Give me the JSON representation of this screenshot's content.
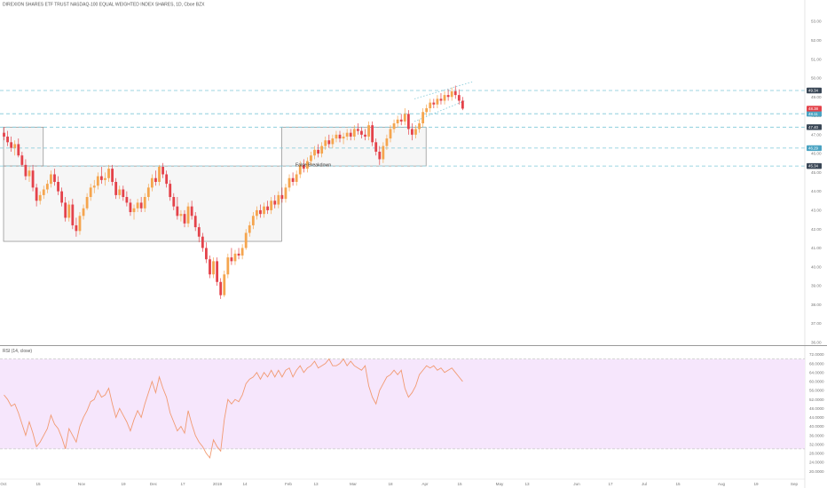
{
  "header": {
    "title": "DIREXION SHARES ETF TRUST NASDAQ-100 EQUAL WEIGHTED INDEX SHARES, 1D, Cboe BZX"
  },
  "rsi_panel": {
    "label": "RSI (14, close)"
  },
  "annotation": {
    "text": "False Breakdown"
  },
  "colors": {
    "up": "#f5a54e",
    "down": "#e4424a",
    "level_line": "#7ec8d8",
    "rsi_line": "#f19a72",
    "rsi_band": "#f6e6fc",
    "box_fill": "#f6f6f6",
    "box_stroke": "#8a8a8a",
    "tag_dark": "#3a4756",
    "tag_light": "#4aa3c2",
    "tag_current": "#e4424a"
  },
  "chart_data": [
    {
      "type": "candlestick",
      "title": "DIREXION SHARES ETF TRUST NASDAQ-100 EQUAL WEIGHTED INDEX SHARES, 1D, Cboe BZX",
      "x_ticks": [
        "Oct",
        "15",
        "Nov",
        "19",
        "Dec",
        "17",
        "2019",
        "14",
        "Feb",
        "13",
        "Mar",
        "18",
        "Apr",
        "15",
        "May",
        "13",
        "Jun",
        "17",
        "Jul",
        "15",
        "Aug",
        "19",
        "Sep"
      ],
      "y_ticks": [
        "53.00",
        "52.00",
        "51.00",
        "50.00",
        "49.00",
        "48.00",
        "47.00",
        "46.00",
        "45.00",
        "44.00",
        "43.00",
        "42.00",
        "41.00",
        "40.00",
        "39.00",
        "38.00",
        "37.00",
        "36.00"
      ],
      "ylim": [
        35.9,
        53.1
      ],
      "levels": [
        {
          "value": "49.34",
          "y": 49.34,
          "style": "dark"
        },
        {
          "value": "48.11",
          "y": 48.11,
          "style": "light"
        },
        {
          "value": "47.40",
          "y": 47.4,
          "style": "dark"
        },
        {
          "value": "46.29",
          "y": 46.29,
          "style": "light"
        },
        {
          "value": "45.34",
          "y": 45.34,
          "style": "dark"
        }
      ],
      "current_price": {
        "value": "48.38",
        "y": 48.38
      },
      "ranges": [
        {
          "high": 47.4,
          "low": 45.34
        },
        {
          "high": 45.34,
          "low": 41.35
        },
        {
          "high": 47.4,
          "low": 45.34
        }
      ],
      "series": [
        {
          "values": [
            [
              47.1,
              47.4,
              46.7,
              46.9
            ],
            [
              46.9,
              47.2,
              46.4,
              46.6
            ],
            [
              46.6,
              46.9,
              46.1,
              46.3
            ],
            [
              46.3,
              46.7,
              45.9,
              46.5
            ],
            [
              46.5,
              46.8,
              45.8,
              45.9
            ],
            [
              45.9,
              46.1,
              45.3,
              45.4
            ],
            [
              45.4,
              45.7,
              44.6,
              44.8
            ],
            [
              44.8,
              45.3,
              44.5,
              45.1
            ],
            [
              45.1,
              45.4,
              44.0,
              44.2
            ],
            [
              44.2,
              44.4,
              43.2,
              43.5
            ],
            [
              43.5,
              44.0,
              43.3,
              43.8
            ],
            [
              43.8,
              44.3,
              43.6,
              44.1
            ],
            [
              44.1,
              44.6,
              43.9,
              44.4
            ],
            [
              44.4,
              45.1,
              44.2,
              44.9
            ],
            [
              44.9,
              45.2,
              44.3,
              44.5
            ],
            [
              44.5,
              44.8,
              43.8,
              44.0
            ],
            [
              44.0,
              44.2,
              43.2,
              43.4
            ],
            [
              43.4,
              43.7,
              42.4,
              42.6
            ],
            [
              42.6,
              43.5,
              42.4,
              43.3
            ],
            [
              43.3,
              43.6,
              42.0,
              42.2
            ],
            [
              42.2,
              42.6,
              41.6,
              41.9
            ],
            [
              41.9,
              42.9,
              41.7,
              42.7
            ],
            [
              42.7,
              43.3,
              42.5,
              43.1
            ],
            [
              43.1,
              43.9,
              43.0,
              43.7
            ],
            [
              43.7,
              44.4,
              43.5,
              44.2
            ],
            [
              44.2,
              44.6,
              43.9,
              44.3
            ],
            [
              44.3,
              45.0,
              44.1,
              44.8
            ],
            [
              44.8,
              45.3,
              44.4,
              44.6
            ],
            [
              44.6,
              45.0,
              44.3,
              44.7
            ],
            [
              44.7,
              45.4,
              44.5,
              45.2
            ],
            [
              45.2,
              45.4,
              44.3,
              44.5
            ],
            [
              44.5,
              44.7,
              43.6,
              43.8
            ],
            [
              43.8,
              44.3,
              43.6,
              44.1
            ],
            [
              44.1,
              44.3,
              43.5,
              43.7
            ],
            [
              43.7,
              44.0,
              43.2,
              43.4
            ],
            [
              43.4,
              43.6,
              42.7,
              42.9
            ],
            [
              42.9,
              43.3,
              42.5,
              43.1
            ],
            [
              43.1,
              43.6,
              42.9,
              43.4
            ],
            [
              43.4,
              43.7,
              42.9,
              43.1
            ],
            [
              43.1,
              43.9,
              42.9,
              43.7
            ],
            [
              43.7,
              44.4,
              43.5,
              44.2
            ],
            [
              44.2,
              44.9,
              44.0,
              44.7
            ],
            [
              44.7,
              45.1,
              44.3,
              44.5
            ],
            [
              44.5,
              45.4,
              44.3,
              45.3
            ],
            [
              45.3,
              45.5,
              44.7,
              44.9
            ],
            [
              44.9,
              45.1,
              44.2,
              44.4
            ],
            [
              44.4,
              44.6,
              43.5,
              43.7
            ],
            [
              43.7,
              43.9,
              43.0,
              43.2
            ],
            [
              43.2,
              43.7,
              42.5,
              42.7
            ],
            [
              42.7,
              43.0,
              42.4,
              42.8
            ],
            [
              42.8,
              43.0,
              42.1,
              42.3
            ],
            [
              42.3,
              43.4,
              42.1,
              43.2
            ],
            [
              43.2,
              43.5,
              42.5,
              42.7
            ],
            [
              42.7,
              42.9,
              41.9,
              42.1
            ],
            [
              42.1,
              42.3,
              41.3,
              41.6
            ],
            [
              41.6,
              41.8,
              40.8,
              41.0
            ],
            [
              41.0,
              41.3,
              40.2,
              40.4
            ],
            [
              40.4,
              40.6,
              39.4,
              39.6
            ],
            [
              39.6,
              40.5,
              39.4,
              40.3
            ],
            [
              40.3,
              40.5,
              39.0,
              39.2
            ],
            [
              39.2,
              39.4,
              38.3,
              38.5
            ],
            [
              38.5,
              39.8,
              38.4,
              39.6
            ],
            [
              39.6,
              40.7,
              39.4,
              40.5
            ],
            [
              40.5,
              41.0,
              40.1,
              40.3
            ],
            [
              40.3,
              40.9,
              40.1,
              40.7
            ],
            [
              40.7,
              41.0,
              40.4,
              40.6
            ],
            [
              40.6,
              41.2,
              40.4,
              41.0
            ],
            [
              41.0,
              42.0,
              40.9,
              41.8
            ],
            [
              41.8,
              42.4,
              41.6,
              42.2
            ],
            [
              42.2,
              42.9,
              42.0,
              42.7
            ],
            [
              42.7,
              43.2,
              42.5,
              43.0
            ],
            [
              43.0,
              43.3,
              42.6,
              42.8
            ],
            [
              42.8,
              43.4,
              42.6,
              43.2
            ],
            [
              43.2,
              43.5,
              42.8,
              43.0
            ],
            [
              43.0,
              43.7,
              42.8,
              43.5
            ],
            [
              43.5,
              43.8,
              43.1,
              43.3
            ],
            [
              43.3,
              44.0,
              43.1,
              43.8
            ],
            [
              43.8,
              44.2,
              43.4,
              43.6
            ],
            [
              43.6,
              44.4,
              43.4,
              44.2
            ],
            [
              44.2,
              44.9,
              44.0,
              44.7
            ],
            [
              44.7,
              45.0,
              44.3,
              44.5
            ],
            [
              44.5,
              45.1,
              44.3,
              44.9
            ],
            [
              44.9,
              45.6,
              44.7,
              45.4
            ],
            [
              45.4,
              45.7,
              45.0,
              45.2
            ],
            [
              45.2,
              45.8,
              45.0,
              45.6
            ],
            [
              45.6,
              46.1,
              45.4,
              45.9
            ],
            [
              45.9,
              46.4,
              45.7,
              46.2
            ],
            [
              46.2,
              46.5,
              45.8,
              46.0
            ],
            [
              46.0,
              46.6,
              45.8,
              46.4
            ],
            [
              46.4,
              46.9,
              46.2,
              46.7
            ],
            [
              46.7,
              47.0,
              46.3,
              46.5
            ],
            [
              46.5,
              47.0,
              46.3,
              46.8
            ],
            [
              46.8,
              47.2,
              46.6,
              47.0
            ],
            [
              47.0,
              47.2,
              46.6,
              46.8
            ],
            [
              46.8,
              47.1,
              46.5,
              46.9
            ],
            [
              46.9,
              47.3,
              46.7,
              47.1
            ],
            [
              47.1,
              47.3,
              46.7,
              46.9
            ],
            [
              46.9,
              47.5,
              46.7,
              47.3
            ],
            [
              47.3,
              47.6,
              47.0,
              47.2
            ],
            [
              47.2,
              47.4,
              46.8,
              47.0
            ],
            [
              47.0,
              47.3,
              46.7,
              46.9
            ],
            [
              46.9,
              47.7,
              46.7,
              47.5
            ],
            [
              47.5,
              47.7,
              46.4,
              46.6
            ],
            [
              46.6,
              46.8,
              45.9,
              46.1
            ],
            [
              46.1,
              46.4,
              45.4,
              45.7
            ],
            [
              45.7,
              46.6,
              45.5,
              46.4
            ],
            [
              46.4,
              47.0,
              46.2,
              46.8
            ],
            [
              46.8,
              47.5,
              46.6,
              47.3
            ],
            [
              47.3,
              47.8,
              47.1,
              47.6
            ],
            [
              47.6,
              48.0,
              47.4,
              47.8
            ],
            [
              47.8,
              48.1,
              47.5,
              47.7
            ],
            [
              47.7,
              48.4,
              47.5,
              48.1
            ],
            [
              48.1,
              48.3,
              47.0,
              47.3
            ],
            [
              47.3,
              47.6,
              46.7,
              47.0
            ],
            [
              47.0,
              47.5,
              46.8,
              47.3
            ],
            [
              47.3,
              47.8,
              47.1,
              47.6
            ],
            [
              47.6,
              48.4,
              47.4,
              48.2
            ],
            [
              48.2,
              48.6,
              48.0,
              48.4
            ],
            [
              48.4,
              48.9,
              48.2,
              48.7
            ],
            [
              48.7,
              48.9,
              48.4,
              48.6
            ],
            [
              48.6,
              49.1,
              48.4,
              48.9
            ],
            [
              48.9,
              49.2,
              48.6,
              48.8
            ],
            [
              48.8,
              49.3,
              48.6,
              49.1
            ],
            [
              49.1,
              49.4,
              48.8,
              49.0
            ],
            [
              49.0,
              49.5,
              48.8,
              49.3
            ],
            [
              49.3,
              49.6,
              48.9,
              49.1
            ],
            [
              49.1,
              49.4,
              48.6,
              48.8
            ],
            [
              48.8,
              49.0,
              48.3,
              48.38
            ]
          ]
        }
      ]
    },
    {
      "type": "line",
      "title": "RSI (14, close)",
      "y_ticks": [
        "72.0000",
        "68.0000",
        "64.0000",
        "60.0000",
        "56.0000",
        "52.0000",
        "48.0000",
        "44.0000",
        "40.0000",
        "36.0000",
        "32.0000",
        "28.0000",
        "24.0000",
        "20.0000"
      ],
      "ylim": [
        17.7,
        73.8
      ],
      "band": [
        30,
        70
      ],
      "series": [
        {
          "values": [
            54,
            52,
            49,
            50,
            46,
            41,
            36,
            42,
            37,
            31,
            33,
            36,
            39,
            45,
            41,
            39,
            35,
            30,
            39,
            36,
            33,
            40,
            44,
            47,
            51,
            52,
            56,
            53,
            54,
            57,
            50,
            44,
            48,
            45,
            42,
            38,
            43,
            47,
            44,
            50,
            55,
            60,
            55,
            62,
            57,
            53,
            46,
            42,
            38,
            40,
            37,
            47,
            41,
            36,
            33,
            31,
            28,
            26,
            34,
            31,
            29,
            43,
            52,
            50,
            52,
            51,
            54,
            59,
            61,
            62,
            64,
            61,
            64,
            62,
            65,
            62,
            65,
            62,
            65,
            66,
            62,
            65,
            67,
            64,
            66,
            67,
            69,
            66,
            67,
            68,
            70,
            67,
            67,
            68,
            70,
            67,
            69,
            67,
            66,
            65,
            67,
            58,
            53,
            50,
            56,
            59,
            62,
            63,
            65,
            63,
            65,
            57,
            53,
            55,
            58,
            63,
            65,
            67,
            66,
            67,
            65,
            66,
            64,
            65,
            66,
            64,
            62,
            60
          ]
        }
      ]
    }
  ]
}
